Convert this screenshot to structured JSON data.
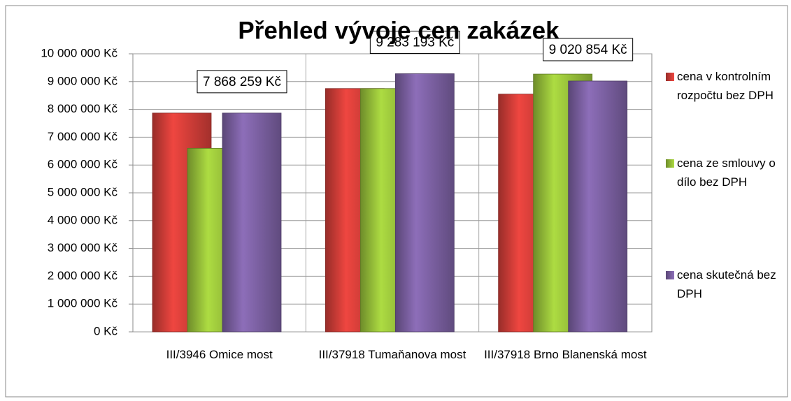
{
  "chart_data": {
    "type": "bar",
    "title": "Přehled  vývoje cen zakázek",
    "categories": [
      "III/3946 Omice most",
      "III/37918 Tumaňanova most",
      "III/37918 Brno Blanenská most"
    ],
    "series": [
      {
        "name": "cena v kontrolním rozpočtu bez DPH",
        "color": "#d9403a",
        "values": [
          7868259,
          8750000,
          8550000
        ]
      },
      {
        "name": "cena ze smlouvy o dílo bez DPH",
        "color": "#9dc83c",
        "values": [
          6600000,
          8750000,
          9270000
        ]
      },
      {
        "name": "cena skutečná bez DPH",
        "color": "#8064a8",
        "values": [
          7868259,
          9283193,
          9020854
        ],
        "value_labels": [
          "7 868 259 Kč",
          "9 283 193 Kč",
          "9 020 854 Kč"
        ]
      }
    ],
    "ylim": [
      0,
      10000000
    ],
    "yticks": [
      {
        "value": 0,
        "label": "0 Kč"
      },
      {
        "value": 1000000,
        "label": "1 000 000 Kč"
      },
      {
        "value": 2000000,
        "label": "2 000 000 Kč"
      },
      {
        "value": 3000000,
        "label": "3 000 000 Kč"
      },
      {
        "value": 4000000,
        "label": "4 000 000 Kč"
      },
      {
        "value": 5000000,
        "label": "5 000 000 Kč"
      },
      {
        "value": 6000000,
        "label": "6 000 000 Kč"
      },
      {
        "value": 7000000,
        "label": "7 000 000 Kč"
      },
      {
        "value": 8000000,
        "label": "8 000 000 Kč"
      },
      {
        "value": 9000000,
        "label": "9 000 000 Kč"
      },
      {
        "value": 10000000,
        "label": "10 000 000 Kč"
      }
    ],
    "grid": true,
    "legend": "right"
  }
}
